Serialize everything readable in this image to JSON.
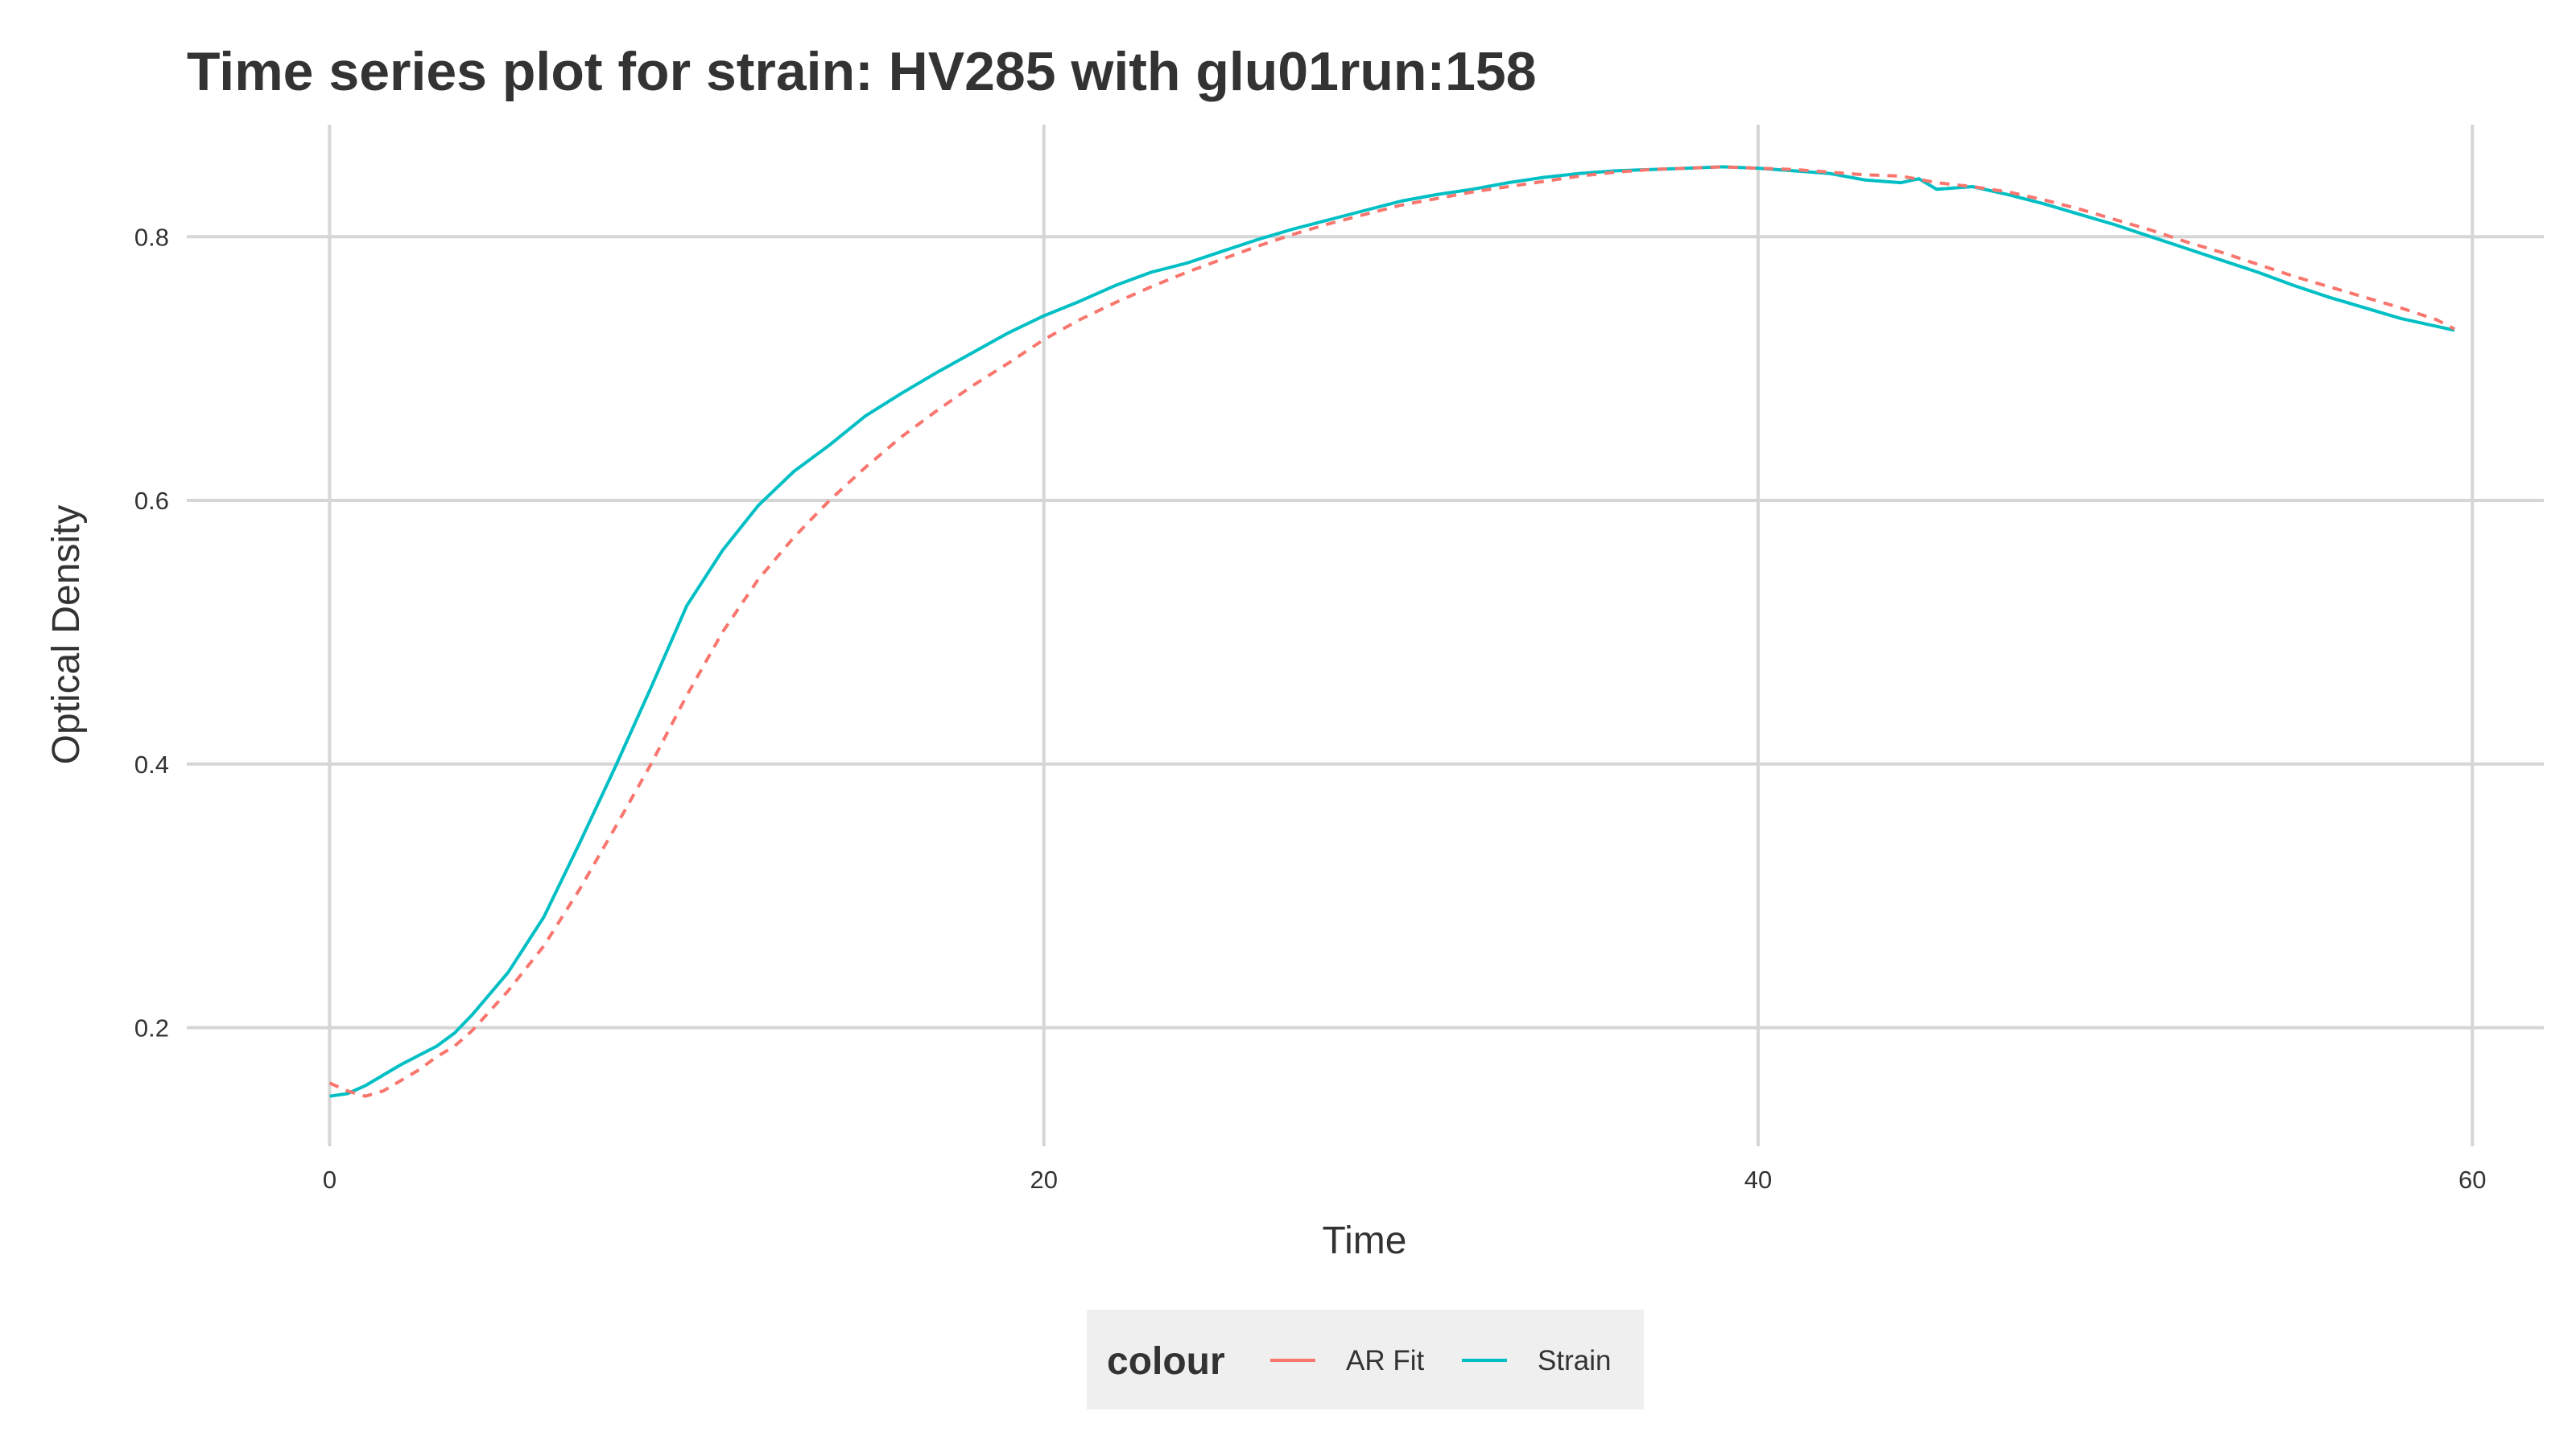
{
  "chart_data": {
    "type": "line",
    "title": "Time series plot for strain: HV285 with glu01run:158",
    "xlabel": "Time",
    "ylabel": "Optical Density",
    "xlim": [
      -4,
      62
    ],
    "ylim": [
      0.11,
      0.885
    ],
    "x_ticks": [
      0,
      20,
      40,
      60
    ],
    "x_tick_labels": [
      "0",
      "20",
      "40",
      "60"
    ],
    "y_ticks": [
      0.2,
      0.4,
      0.6,
      0.8
    ],
    "y_tick_labels": [
      "0.2",
      "0.4",
      "0.6",
      "0.8"
    ],
    "grid": true,
    "legend": {
      "title": "colour",
      "position": "bottom",
      "background": "#efefef",
      "items": [
        {
          "label": "AR Fit",
          "color": "#F8766D",
          "dash": true
        },
        {
          "label": "Strain",
          "color": "#00BFC4",
          "dash": false
        }
      ]
    },
    "series": [
      {
        "name": "AR Fit",
        "color": "#F8766D",
        "style": "dashed",
        "points": [
          [
            0,
            0.158
          ],
          [
            0.5,
            0.152
          ],
          [
            1,
            0.148
          ],
          [
            1.5,
            0.152
          ],
          [
            2,
            0.16
          ],
          [
            2.5,
            0.168
          ],
          [
            3,
            0.178
          ],
          [
            3.5,
            0.186
          ],
          [
            4,
            0.198
          ],
          [
            5,
            0.228
          ],
          [
            6,
            0.262
          ],
          [
            7,
            0.305
          ],
          [
            8,
            0.352
          ],
          [
            9,
            0.4
          ],
          [
            10,
            0.452
          ],
          [
            11,
            0.5
          ],
          [
            12,
            0.54
          ],
          [
            13,
            0.572
          ],
          [
            14,
            0.6
          ],
          [
            15,
            0.625
          ],
          [
            16,
            0.648
          ],
          [
            17,
            0.668
          ],
          [
            18,
            0.687
          ],
          [
            19,
            0.704
          ],
          [
            20,
            0.722
          ],
          [
            21,
            0.737
          ],
          [
            22,
            0.75
          ],
          [
            23,
            0.762
          ],
          [
            24,
            0.773
          ],
          [
            25,
            0.783
          ],
          [
            26,
            0.793
          ],
          [
            27,
            0.802
          ],
          [
            28,
            0.81
          ],
          [
            29,
            0.817
          ],
          [
            30,
            0.824
          ],
          [
            31,
            0.829
          ],
          [
            32,
            0.834
          ],
          [
            33,
            0.838
          ],
          [
            34,
            0.842
          ],
          [
            35,
            0.846
          ],
          [
            36,
            0.849
          ],
          [
            37,
            0.851
          ],
          [
            38,
            0.852
          ],
          [
            39,
            0.853
          ],
          [
            40,
            0.852
          ],
          [
            41,
            0.851
          ],
          [
            42,
            0.849
          ],
          [
            43,
            0.847
          ],
          [
            44,
            0.846
          ],
          [
            45,
            0.841
          ],
          [
            46,
            0.838
          ],
          [
            47,
            0.834
          ],
          [
            48,
            0.828
          ],
          [
            49,
            0.821
          ],
          [
            50,
            0.813
          ],
          [
            51,
            0.805
          ],
          [
            52,
            0.796
          ],
          [
            53,
            0.788
          ],
          [
            54,
            0.779
          ],
          [
            55,
            0.77
          ],
          [
            56,
            0.762
          ],
          [
            57,
            0.754
          ],
          [
            58,
            0.746
          ],
          [
            59,
            0.737
          ],
          [
            59.5,
            0.73
          ]
        ]
      },
      {
        "name": "Strain",
        "color": "#00BFC4",
        "style": "solid",
        "points": [
          [
            0,
            0.148
          ],
          [
            0.5,
            0.15
          ],
          [
            1,
            0.156
          ],
          [
            1.5,
            0.164
          ],
          [
            2,
            0.172
          ],
          [
            2.5,
            0.179
          ],
          [
            3,
            0.186
          ],
          [
            3.5,
            0.196
          ],
          [
            4,
            0.21
          ],
          [
            5,
            0.242
          ],
          [
            6,
            0.284
          ],
          [
            7,
            0.34
          ],
          [
            8,
            0.398
          ],
          [
            9,
            0.458
          ],
          [
            10,
            0.52
          ],
          [
            11,
            0.562
          ],
          [
            12,
            0.596
          ],
          [
            13,
            0.622
          ],
          [
            14,
            0.642
          ],
          [
            15,
            0.664
          ],
          [
            16,
            0.681
          ],
          [
            17,
            0.697
          ],
          [
            18,
            0.712
          ],
          [
            19,
            0.727
          ],
          [
            20,
            0.74
          ],
          [
            21,
            0.751
          ],
          [
            22,
            0.763
          ],
          [
            23,
            0.773
          ],
          [
            24,
            0.78
          ],
          [
            25,
            0.789
          ],
          [
            26,
            0.798
          ],
          [
            27,
            0.806
          ],
          [
            28,
            0.813
          ],
          [
            29,
            0.82
          ],
          [
            30,
            0.827
          ],
          [
            31,
            0.832
          ],
          [
            32,
            0.836
          ],
          [
            33,
            0.841
          ],
          [
            34,
            0.845
          ],
          [
            35,
            0.848
          ],
          [
            36,
            0.85
          ],
          [
            37,
            0.851
          ],
          [
            38,
            0.852
          ],
          [
            39,
            0.853
          ],
          [
            40,
            0.852
          ],
          [
            41,
            0.85
          ],
          [
            42,
            0.848
          ],
          [
            43,
            0.843
          ],
          [
            44,
            0.841
          ],
          [
            44.5,
            0.844
          ],
          [
            45,
            0.836
          ],
          [
            46,
            0.838
          ],
          [
            47,
            0.832
          ],
          [
            48,
            0.825
          ],
          [
            49,
            0.817
          ],
          [
            50,
            0.809
          ],
          [
            51,
            0.8
          ],
          [
            52,
            0.791
          ],
          [
            53,
            0.782
          ],
          [
            54,
            0.773
          ],
          [
            55,
            0.763
          ],
          [
            56,
            0.754
          ],
          [
            57,
            0.746
          ],
          [
            58,
            0.738
          ],
          [
            59,
            0.732
          ],
          [
            59.5,
            0.729
          ]
        ]
      }
    ]
  }
}
